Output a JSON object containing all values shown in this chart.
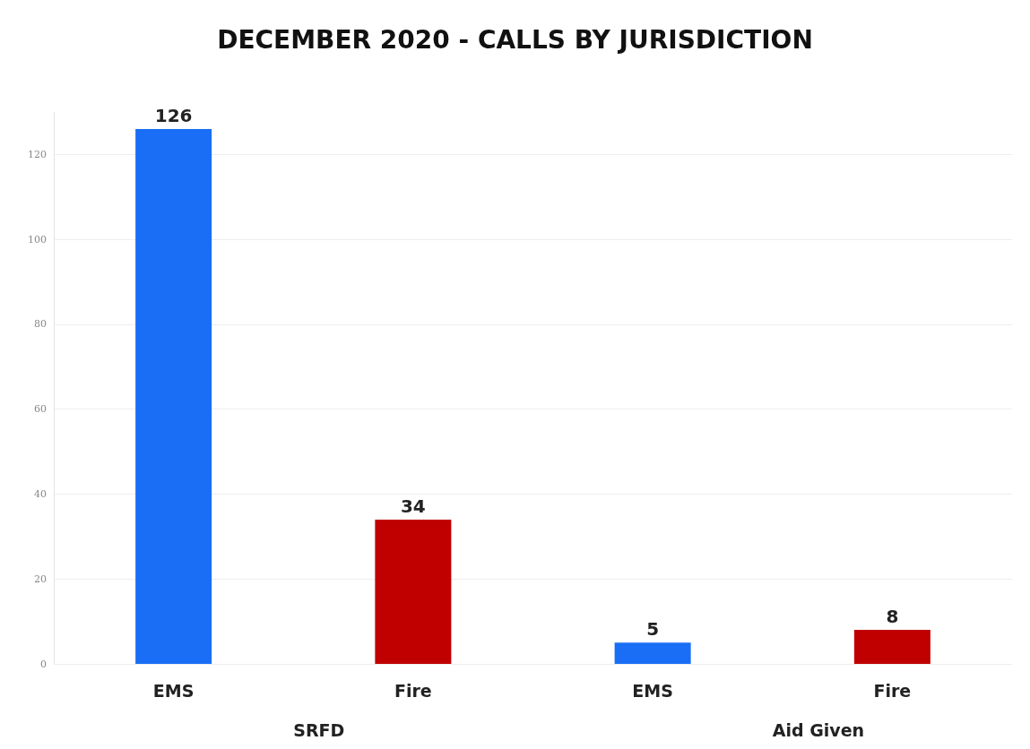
{
  "chart_data": {
    "type": "bar",
    "title": "DECEMBER 2020 - CALLS BY JURISDICTION",
    "categories": [
      "EMS",
      "Fire",
      "EMS",
      "Fire"
    ],
    "values": [
      126,
      34,
      5,
      8
    ],
    "colors": [
      "#1a6ef5",
      "#c00000",
      "#1a6ef5",
      "#c00000"
    ],
    "ylim": [
      0,
      130
    ],
    "yticks": [
      0,
      20,
      40,
      60,
      80,
      100,
      120
    ],
    "grid": "y",
    "data_labels": true,
    "annotations": [
      "SRFD",
      "Aid Given"
    ]
  }
}
